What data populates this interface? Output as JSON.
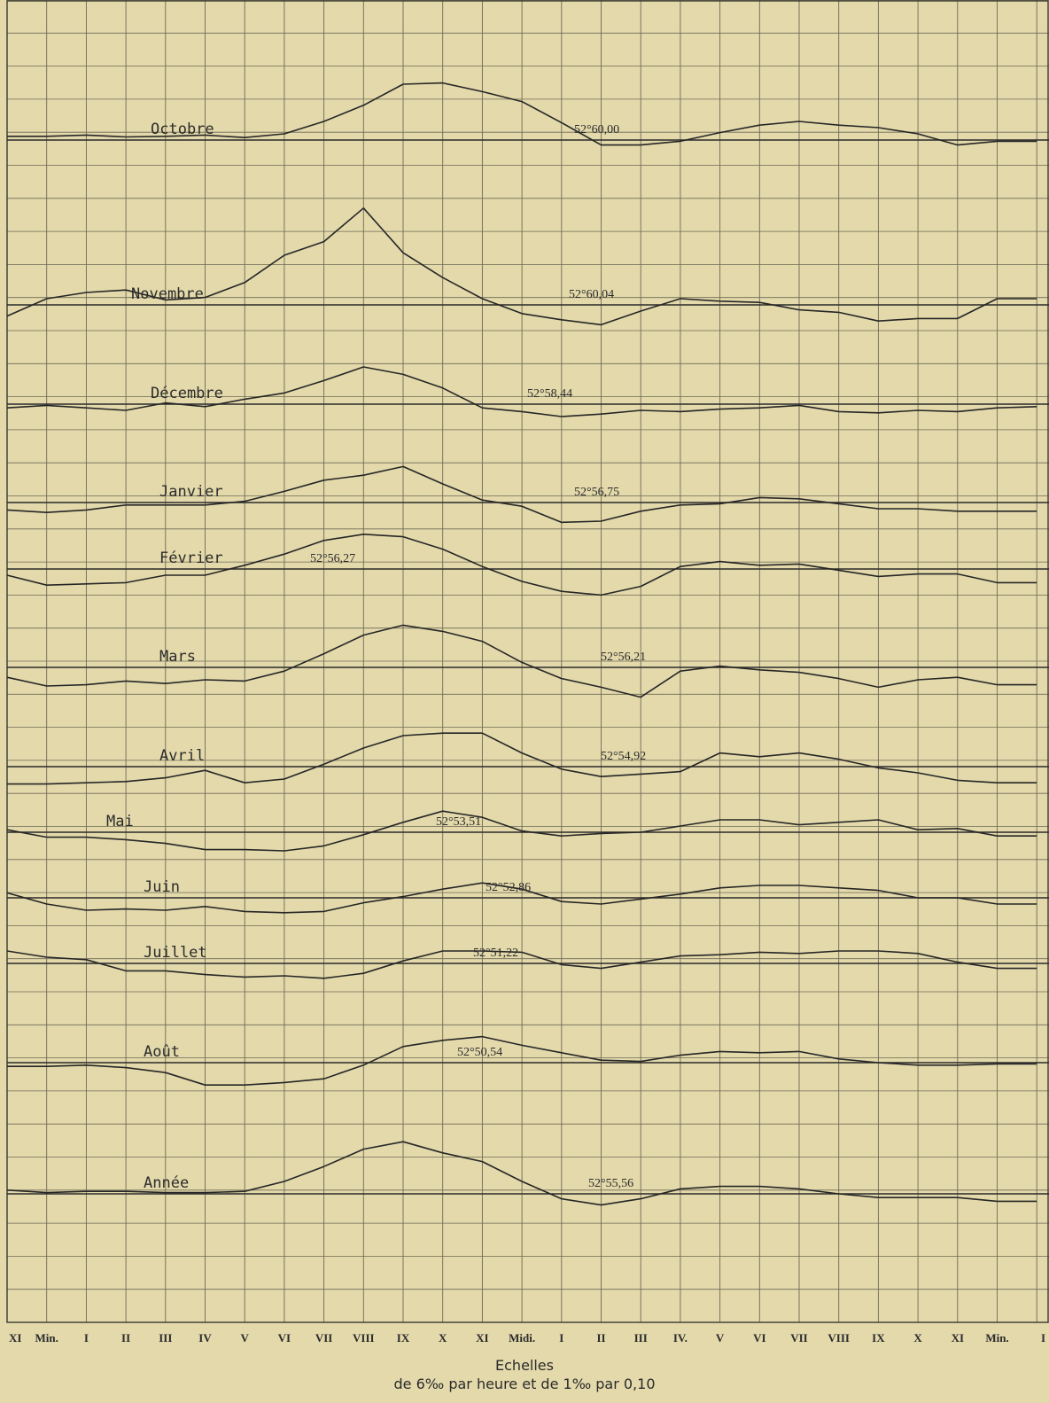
{
  "chart_data": {
    "type": "line",
    "title": "",
    "xlabel": "",
    "ylabel": "",
    "grid": true,
    "x_ticks": [
      "XI",
      "Min.",
      "I",
      "II",
      "III",
      "IV",
      "V",
      "VI",
      "VII",
      "VIII",
      "IX",
      "X",
      "XI",
      "Midi.",
      "I",
      "II",
      "III",
      "IV.",
      "V",
      "VI",
      "VII",
      "VIII",
      "IX",
      "X",
      "XI",
      "Min.",
      "I"
    ],
    "footer": {
      "line1": "Echelles",
      "line2": "de 6‰ par heure et de 1‰ par 0,10"
    },
    "series": [
      {
        "name": "Octobre",
        "value_label": "52°60,00",
        "values": [
          0.3,
          0.3,
          0.4,
          0.25,
          0.3,
          0.4,
          0.2,
          0.5,
          1.5,
          2.8,
          4.5,
          4.6,
          3.9,
          3.1,
          1.4,
          -0.4,
          -0.4,
          -0.1,
          0.6,
          1.2,
          1.5,
          1.2,
          1.0,
          0.5,
          -0.4,
          -0.1,
          -0.1
        ]
      },
      {
        "name": "Novembre",
        "value_label": "52°60,04",
        "values": [
          -0.9,
          0.5,
          1.0,
          1.2,
          0.4,
          0.6,
          1.8,
          4.0,
          5.1,
          7.8,
          4.2,
          2.2,
          0.5,
          -0.7,
          -1.2,
          -1.6,
          -0.5,
          0.5,
          0.3,
          0.2,
          -0.4,
          -0.6,
          -1.3,
          -1.1,
          -1.1,
          0.5,
          0.5
        ]
      },
      {
        "name": "Décembre",
        "value_label": "52°58,44",
        "values": [
          -0.3,
          -0.1,
          -0.3,
          -0.5,
          0.1,
          -0.2,
          0.4,
          0.9,
          1.9,
          3.0,
          2.4,
          1.3,
          -0.3,
          -0.6,
          -1.0,
          -0.8,
          -0.5,
          -0.6,
          -0.4,
          -0.3,
          -0.1,
          -0.6,
          -0.7,
          -0.5,
          -0.6,
          -0.3,
          -0.2
        ]
      },
      {
        "name": "Janvier",
        "value_label": "52°56,75",
        "values": [
          -0.6,
          -0.8,
          -0.6,
          -0.2,
          -0.2,
          -0.2,
          0.1,
          0.9,
          1.8,
          2.2,
          2.9,
          1.5,
          0.2,
          -0.3,
          -1.6,
          -1.5,
          -0.7,
          -0.2,
          -0.1,
          0.4,
          0.3,
          -0.1,
          -0.5,
          -0.5,
          -0.7,
          -0.7,
          -0.7
        ]
      },
      {
        "name": "Février",
        "value_label": "52°56,27",
        "values": [
          -0.5,
          -1.3,
          -1.2,
          -1.1,
          -0.5,
          -0.5,
          0.3,
          1.2,
          2.3,
          2.8,
          2.6,
          1.6,
          0.2,
          -1.0,
          -1.8,
          -2.1,
          -1.4,
          0.2,
          0.6,
          0.3,
          0.4,
          -0.1,
          -0.6,
          -0.4,
          -0.4,
          -1.1,
          -1.1
        ]
      },
      {
        "name": "Mars",
        "value_label": "52°56,21",
        "values": [
          -0.8,
          -1.5,
          -1.4,
          -1.1,
          -1.3,
          -1.0,
          -1.1,
          -0.3,
          1.1,
          2.6,
          3.4,
          2.9,
          2.1,
          0.4,
          -0.9,
          -1.6,
          -2.4,
          -0.3,
          0.1,
          -0.2,
          -0.4,
          -0.9,
          -1.6,
          -1.0,
          -0.8,
          -1.4,
          -1.4
        ]
      },
      {
        "name": "Avril",
        "value_label": "52°54,92",
        "values": [
          -1.4,
          -1.4,
          -1.3,
          -1.2,
          -0.9,
          -0.3,
          -1.3,
          -1.0,
          0.2,
          1.5,
          2.5,
          2.7,
          2.7,
          1.1,
          -0.2,
          -0.8,
          -0.6,
          -0.4,
          1.1,
          0.8,
          1.1,
          0.6,
          -0.1,
          -0.5,
          -1.1,
          -1.3,
          -1.3
        ]
      },
      {
        "name": "Mai",
        "value_label": "52°53,51",
        "values": [
          0.2,
          -0.4,
          -0.4,
          -0.6,
          -0.9,
          -1.4,
          -1.4,
          -1.5,
          -1.1,
          -0.2,
          0.8,
          1.7,
          1.2,
          0.1,
          -0.3,
          -0.1,
          0.0,
          0.5,
          1.0,
          1.0,
          0.6,
          0.8,
          1.0,
          0.2,
          0.3,
          -0.3,
          -0.3
        ]
      },
      {
        "name": "Juin",
        "value_label": "52°52,86",
        "values": [
          0.4,
          -0.5,
          -1.0,
          -0.9,
          -1.0,
          -0.7,
          -1.1,
          -1.2,
          -1.1,
          -0.4,
          0.1,
          0.7,
          1.2,
          0.7,
          -0.3,
          -0.5,
          -0.1,
          0.3,
          0.8,
          1.0,
          1.0,
          0.8,
          0.6,
          0.0,
          0.0,
          -0.5,
          -0.5
        ]
      },
      {
        "name": "Juillet",
        "value_label": "52°51,22",
        "values": [
          1.0,
          0.5,
          0.3,
          -0.6,
          -0.6,
          -0.9,
          -1.1,
          -1.0,
          -1.2,
          -0.8,
          0.2,
          1.0,
          1.0,
          0.9,
          -0.1,
          -0.4,
          0.1,
          0.6,
          0.7,
          0.9,
          0.8,
          1.0,
          1.0,
          0.8,
          0.1,
          -0.4,
          -0.4
        ]
      },
      {
        "name": "Août",
        "value_label": "52°50,54",
        "values": [
          -0.3,
          -0.3,
          -0.2,
          -0.4,
          -0.8,
          -1.8,
          -1.8,
          -1.6,
          -1.3,
          -0.2,
          1.3,
          1.8,
          2.1,
          1.4,
          0.8,
          0.2,
          0.1,
          0.6,
          0.9,
          0.8,
          0.9,
          0.3,
          0.0,
          -0.2,
          -0.2,
          -0.1,
          -0.1
        ]
      },
      {
        "name": "Année",
        "value_label": "52°55,56",
        "values": [
          0.3,
          0.1,
          0.2,
          0.2,
          0.1,
          0.1,
          0.2,
          1.0,
          2.2,
          3.6,
          4.2,
          3.3,
          2.6,
          1.0,
          -0.4,
          -0.9,
          -0.4,
          0.4,
          0.6,
          0.6,
          0.4,
          0.0,
          -0.3,
          -0.3,
          -0.3,
          -0.6,
          -0.6
        ]
      }
    ]
  }
}
